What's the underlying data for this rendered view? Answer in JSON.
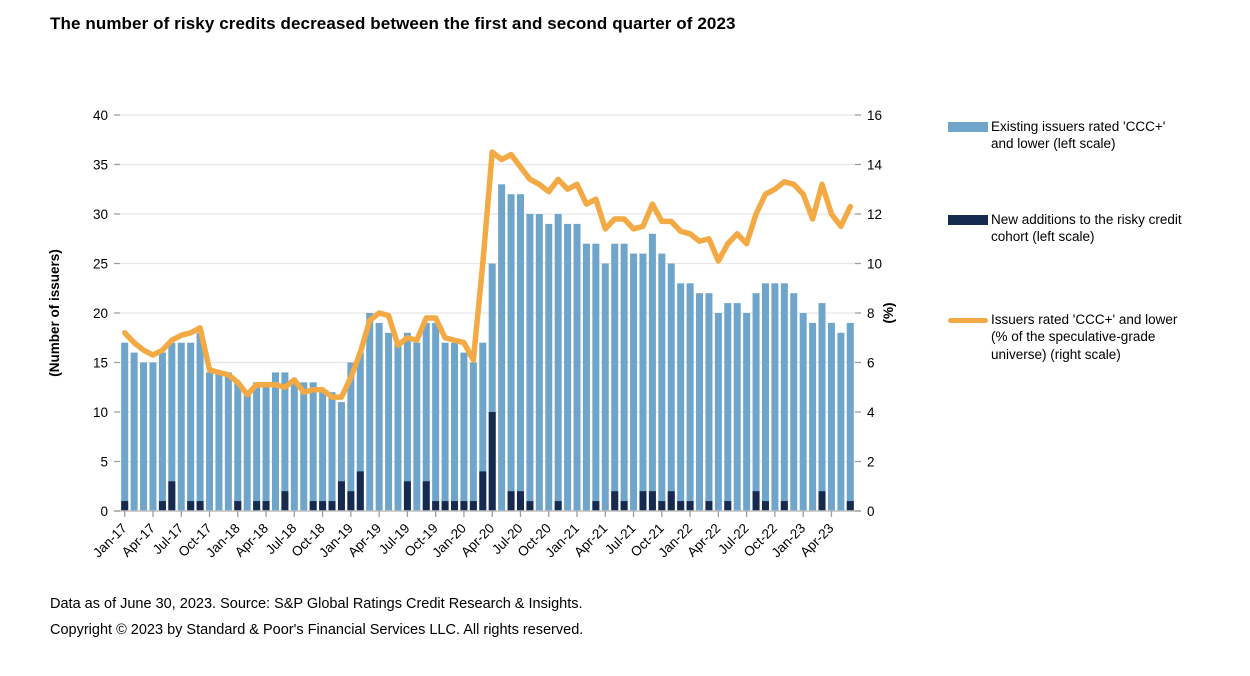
{
  "title": "The number of risky credits decreased between the first and second quarter of 2023",
  "chart_data": {
    "type": "bar+line",
    "title": "The number of risky credits decreased between the first and second quarter of 2023",
    "categories": [
      "Jan-17",
      "Feb-17",
      "Mar-17",
      "Apr-17",
      "May-17",
      "Jun-17",
      "Jul-17",
      "Aug-17",
      "Sep-17",
      "Oct-17",
      "Nov-17",
      "Dec-17",
      "Jan-18",
      "Feb-18",
      "Mar-18",
      "Apr-18",
      "May-18",
      "Jun-18",
      "Jul-18",
      "Aug-18",
      "Sep-18",
      "Oct-18",
      "Nov-18",
      "Dec-18",
      "Jan-19",
      "Feb-19",
      "Mar-19",
      "Apr-19",
      "May-19",
      "Jun-19",
      "Jul-19",
      "Aug-19",
      "Sep-19",
      "Oct-19",
      "Nov-19",
      "Dec-19",
      "Jan-20",
      "Feb-20",
      "Mar-20",
      "Apr-20",
      "May-20",
      "Jun-20",
      "Jul-20",
      "Aug-20",
      "Sep-20",
      "Oct-20",
      "Nov-20",
      "Dec-20",
      "Jan-21",
      "Feb-21",
      "Mar-21",
      "Apr-21",
      "May-21",
      "Jun-21",
      "Jul-21",
      "Aug-21",
      "Sep-21",
      "Oct-21",
      "Nov-21",
      "Dec-21",
      "Jan-22",
      "Feb-22",
      "Mar-22",
      "Apr-22",
      "May-22",
      "Jun-22",
      "Jul-22",
      "Aug-22",
      "Sep-22",
      "Oct-22",
      "Nov-22",
      "Dec-22",
      "Jan-23",
      "Feb-23",
      "Mar-23",
      "Apr-23",
      "May-23",
      "Jun-23"
    ],
    "x_tick_every": 3,
    "series": [
      {
        "name": "Existing issuers rated 'CCC+' and lower (left scale)",
        "type": "bar",
        "axis": "left",
        "color": "#6FA5CB",
        "values": [
          17,
          16,
          15,
          15,
          16,
          17,
          17,
          17,
          18,
          14,
          14,
          14,
          13,
          12,
          13,
          13,
          14,
          14,
          13,
          13,
          13,
          12,
          12,
          11,
          15,
          16,
          20,
          19,
          18,
          17,
          18,
          17,
          19,
          19,
          17,
          17,
          16,
          15,
          17,
          25,
          33,
          32,
          32,
          30,
          30,
          29,
          30,
          29,
          29,
          27,
          27,
          25,
          27,
          27,
          26,
          26,
          28,
          26,
          25,
          23,
          23,
          22,
          22,
          20,
          21,
          21,
          20,
          22,
          23,
          23,
          23,
          22,
          20,
          19,
          21,
          19,
          18,
          19
        ]
      },
      {
        "name": "New additions to the risky credit cohort (left scale)",
        "type": "bar",
        "axis": "left",
        "color": "#16294E",
        "values": [
          1,
          0,
          0,
          0,
          1,
          3,
          0,
          1,
          1,
          0,
          0,
          0,
          1,
          0,
          1,
          1,
          0,
          2,
          0,
          0,
          1,
          1,
          1,
          3,
          2,
          4,
          0,
          0,
          0,
          0,
          3,
          0,
          3,
          1,
          1,
          1,
          1,
          1,
          4,
          10,
          0,
          2,
          2,
          1,
          0,
          0,
          1,
          0,
          0,
          0,
          1,
          0,
          2,
          1,
          0,
          2,
          2,
          1,
          2,
          1,
          1,
          0,
          1,
          0,
          1,
          0,
          0,
          2,
          1,
          0,
          1,
          0,
          0,
          0,
          2,
          0,
          0,
          1
        ]
      },
      {
        "name": "Issuers rated 'CCC+' and lower (% of the speculative-grade universe) (right scale)",
        "type": "line",
        "axis": "right",
        "color": "#F3AA44",
        "values": [
          7.2,
          6.8,
          6.5,
          6.3,
          6.5,
          6.9,
          7.1,
          7.2,
          7.4,
          5.7,
          5.6,
          5.5,
          5.2,
          4.7,
          5.1,
          5.1,
          5.1,
          5.0,
          5.3,
          4.8,
          4.9,
          4.9,
          4.6,
          4.6,
          5.4,
          6.4,
          7.7,
          8.0,
          7.9,
          6.7,
          7.0,
          6.9,
          7.8,
          7.8,
          7.0,
          6.9,
          6.8,
          6.1,
          10.0,
          14.5,
          14.2,
          14.4,
          13.9,
          13.4,
          13.2,
          12.9,
          13.4,
          13.0,
          13.2,
          12.4,
          12.6,
          11.4,
          11.8,
          11.8,
          11.4,
          11.5,
          12.4,
          11.7,
          11.7,
          11.3,
          11.2,
          10.9,
          11.0,
          10.1,
          10.8,
          11.2,
          10.8,
          12.0,
          12.8,
          13.0,
          13.3,
          13.2,
          12.8,
          11.8,
          13.2,
          12.0,
          11.5,
          12.3
        ]
      }
    ],
    "left_axis": {
      "label": "(Number of issuers)",
      "min": 0,
      "max": 40,
      "ticks": [
        0,
        5,
        10,
        15,
        20,
        25,
        30,
        35,
        40
      ]
    },
    "right_axis": {
      "label": "(%)",
      "min": 0,
      "max": 16,
      "ticks": [
        0,
        2,
        4,
        6,
        8,
        10,
        12,
        14,
        16
      ]
    },
    "grid": true,
    "legend_position": "right"
  },
  "legend": {
    "items": [
      {
        "label": "Existing issuers rated 'CCC+' and lower (left scale)",
        "color": "#6FA5CB",
        "kind": "bar"
      },
      {
        "label": "New additions to the risky credit cohort (left scale)",
        "color": "#16294E",
        "kind": "bar"
      },
      {
        "label": "Issuers rated 'CCC+' and lower (% of the speculative-grade universe) (right scale)",
        "color": "#F3AA44",
        "kind": "line"
      }
    ]
  },
  "footer": {
    "line1": "Data as of June 30, 2023. Source: S&P Global Ratings Credit Research & Insights.",
    "line2": "Copyright © 2023 by Standard & Poor's Financial Services LLC. All rights reserved."
  },
  "colors": {
    "existing_bar": "#6FA5CB",
    "new_additions_bar": "#16294E",
    "pct_line": "#F3AA44",
    "gridline": "#E7E7E7",
    "axis_line": "#BFBFBF",
    "tick_mark": "#9E9E9E",
    "text": "#000000"
  }
}
